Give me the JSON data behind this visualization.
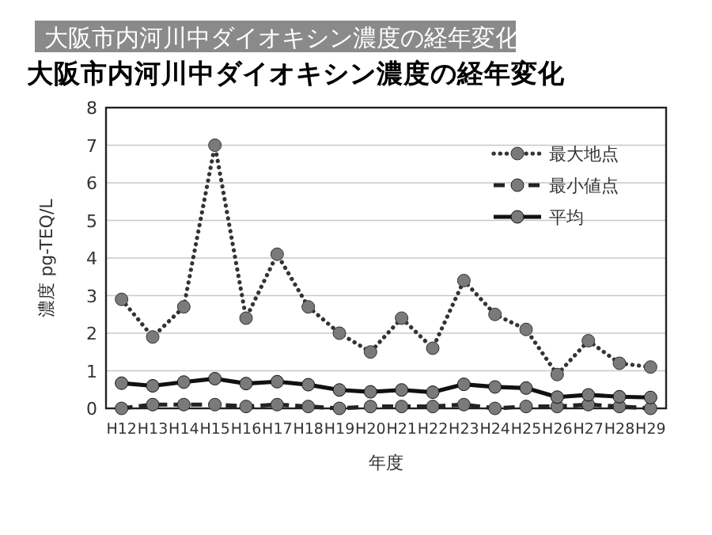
{
  "chart_data": {
    "type": "line",
    "title": "大阪市内河川中ダイオキシン濃度の経年変化",
    "subtitle": "大阪市内河川中ダイオキシン濃度の経年変化",
    "xlabel": "年度",
    "ylabel": "濃度 pg-TEQ/L",
    "categories": [
      "H12",
      "H13",
      "H14",
      "H15",
      "H16",
      "H17",
      "H18",
      "H19",
      "H20",
      "H21",
      "H22",
      "H23",
      "H24",
      "H25",
      "H26",
      "H27",
      "H28",
      "H29"
    ],
    "series": [
      {
        "name": "最大地点",
        "color": "#333333",
        "line_style": "dotted",
        "values": [
          2.9,
          1.9,
          2.7,
          7.0,
          2.4,
          4.1,
          2.7,
          2.0,
          1.5,
          2.4,
          1.6,
          3.4,
          2.5,
          2.1,
          0.9,
          1.8,
          1.2,
          1.1
        ]
      },
      {
        "name": "最小値点",
        "color": "#222222",
        "line_style": "dashed",
        "values": [
          0.0,
          0.1,
          0.1,
          0.1,
          0.05,
          0.1,
          0.05,
          0.0,
          0.05,
          0.05,
          0.05,
          0.1,
          0.0,
          0.05,
          0.05,
          0.1,
          0.05,
          0.0
        ]
      },
      {
        "name": "平均",
        "color": "#111111",
        "line_style": "solid",
        "values": [
          0.67,
          0.6,
          0.7,
          0.79,
          0.66,
          0.71,
          0.63,
          0.49,
          0.44,
          0.49,
          0.43,
          0.64,
          0.57,
          0.54,
          0.3,
          0.36,
          0.31,
          0.29
        ]
      }
    ],
    "ylim": [
      0,
      8
    ],
    "yticks": [
      0,
      1,
      2,
      3,
      4,
      5,
      6,
      7,
      8
    ],
    "grid": "y",
    "legend": "top right",
    "marker": "circle"
  }
}
